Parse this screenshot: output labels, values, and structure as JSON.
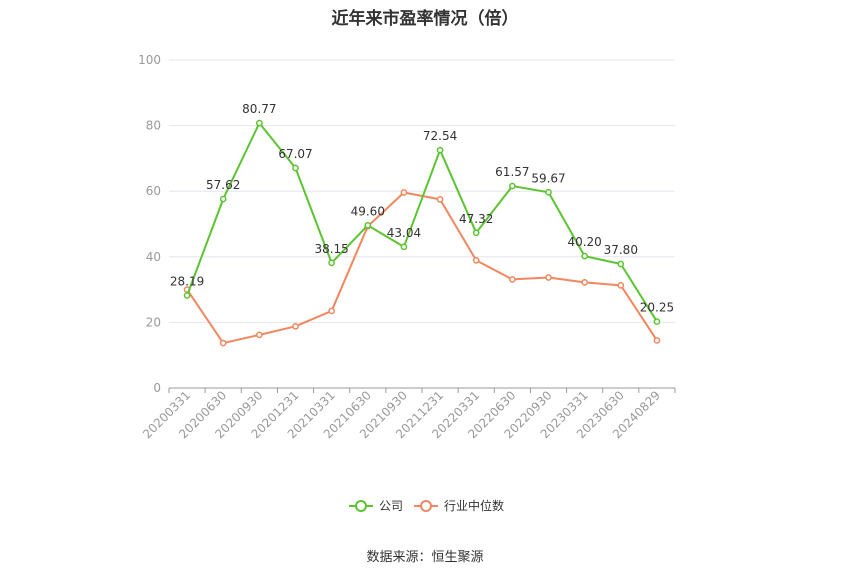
{
  "chart_data": {
    "type": "line",
    "title": "近年来市盈率情况（倍）",
    "categories": [
      "20200331",
      "20200630",
      "20200930",
      "20201231",
      "20210331",
      "20210630",
      "20210930",
      "20211231",
      "20220331",
      "20220630",
      "20220930",
      "20230331",
      "20230630",
      "20240829"
    ],
    "ylim": [
      0,
      100
    ],
    "yticks": [
      0,
      20,
      40,
      60,
      80,
      100
    ],
    "grid": true,
    "legend_position": "bottom-center",
    "series": [
      {
        "name": "公司",
        "color": "#5bc431",
        "values": [
          28.19,
          57.62,
          80.77,
          67.07,
          38.15,
          49.6,
          43.04,
          72.54,
          47.32,
          61.57,
          59.67,
          40.2,
          37.8,
          20.25
        ],
        "labels": [
          "28.19",
          "57.62",
          "80.77",
          "67.07",
          "38.15",
          "49.60",
          "43.04",
          "72.54",
          "47.32",
          "61.57",
          "59.67",
          "40.20",
          "37.80",
          "20.25"
        ]
      },
      {
        "name": "行业中位数",
        "color": "#f0875e",
        "values": [
          30.0,
          13.7,
          16.2,
          18.8,
          23.5,
          49.3,
          59.6,
          57.5,
          38.9,
          33.1,
          33.7,
          32.2,
          31.3,
          14.5
        ]
      }
    ]
  },
  "footer": {
    "source": "数据来源：恒生聚源"
  }
}
